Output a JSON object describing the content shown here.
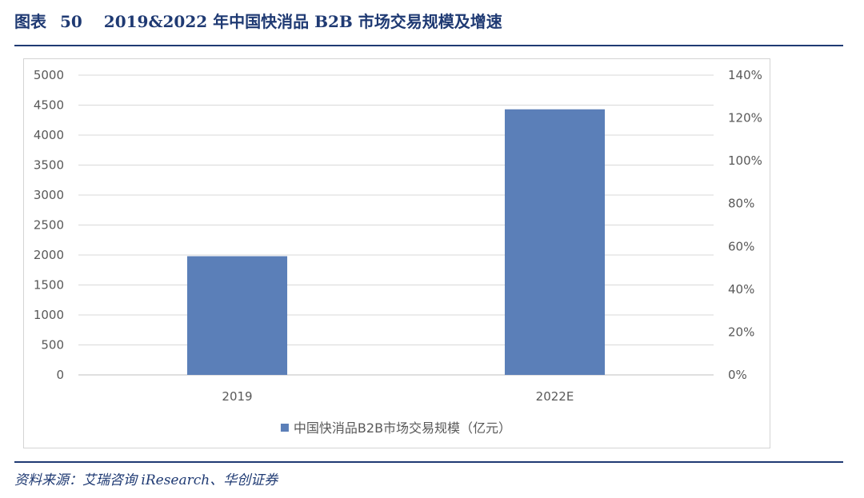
{
  "figure": {
    "label": "图表",
    "number": "50",
    "title": "2019&2022 年中国快消品 B2B 市场交易规模及增速"
  },
  "source": "资料来源：艾瑞咨询 iResearch、华创证券",
  "chart_data": {
    "type": "bar",
    "categories": [
      "2019",
      "2022E"
    ],
    "series": [
      {
        "name": "中国快消品B2B市场交易规模（亿元）",
        "values": [
          1980,
          4430
        ],
        "color": "#5b7fb8"
      }
    ],
    "y_left": {
      "ticks": [
        "0",
        "500",
        "1000",
        "1500",
        "2000",
        "2500",
        "3000",
        "3500",
        "4000",
        "4500",
        "5000"
      ],
      "ylim": [
        0,
        5000
      ]
    },
    "y_right": {
      "ticks": [
        "0%",
        "20%",
        "40%",
        "60%",
        "80%",
        "100%",
        "120%",
        "140%"
      ],
      "ylim": [
        0,
        1.4
      ]
    },
    "grid": true,
    "grid_color": "#d9d9d9",
    "legend_position": "bottom"
  }
}
